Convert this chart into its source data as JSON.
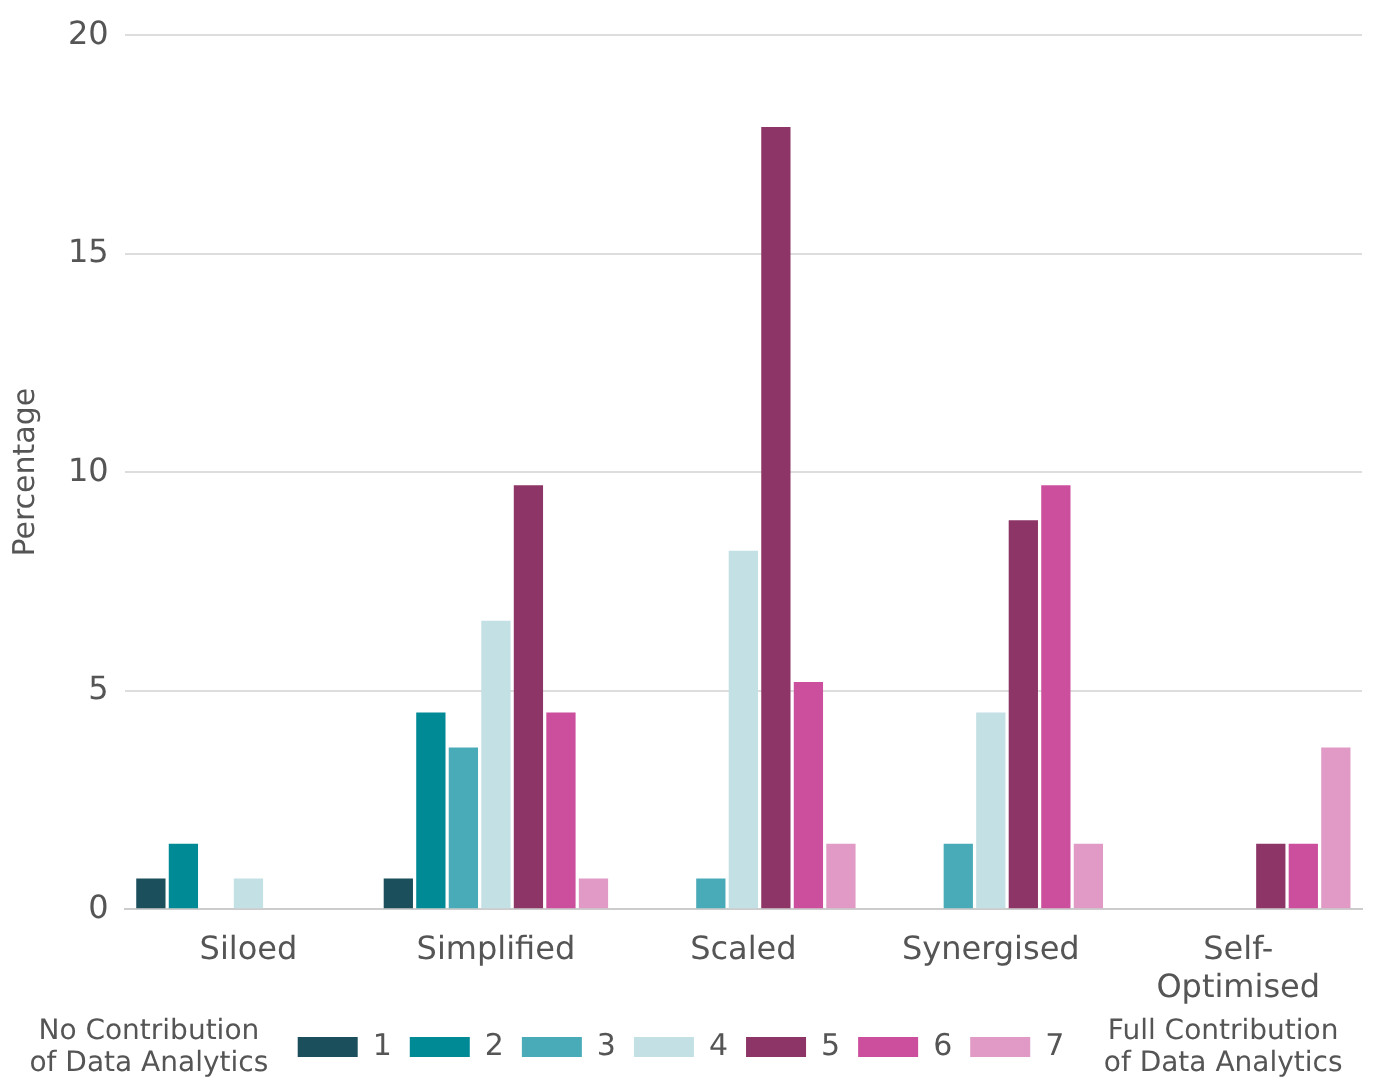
{
  "chart_data": {
    "type": "bar",
    "ylabel": "Percentage",
    "categories": [
      "Siloed",
      "Simplified",
      "Scaled",
      "Synergised",
      "Self-Optimised"
    ],
    "series": [
      {
        "name": "1",
        "color": "#1b4f5c",
        "values": [
          0.7,
          0.7,
          0,
          0,
          0
        ]
      },
      {
        "name": "2",
        "color": "#008a96",
        "values": [
          1.5,
          4.5,
          0,
          0,
          0
        ]
      },
      {
        "name": "3",
        "color": "#4aabb8",
        "values": [
          0,
          3.7,
          0.7,
          1.5,
          0
        ]
      },
      {
        "name": "4",
        "color": "#c3e0e5",
        "values": [
          0.7,
          6.6,
          8.2,
          4.5,
          0
        ]
      },
      {
        "name": "5",
        "color": "#8c3566",
        "values": [
          0,
          9.7,
          17.9,
          8.9,
          1.5
        ]
      },
      {
        "name": "6",
        "color": "#cc4f9e",
        "values": [
          0,
          4.5,
          5.2,
          9.7,
          1.5
        ]
      },
      {
        "name": "7",
        "color": "#e09ac5",
        "values": [
          0,
          0.7,
          1.5,
          1.5,
          3.7
        ]
      }
    ],
    "ylim": [
      0,
      20
    ],
    "yticks": [
      0,
      5,
      10,
      15,
      20
    ],
    "grid": "y",
    "legend": "bottom",
    "annotations": [
      "No Contribution of Data Analytics",
      "Full Contribution of Data Analytics"
    ]
  }
}
